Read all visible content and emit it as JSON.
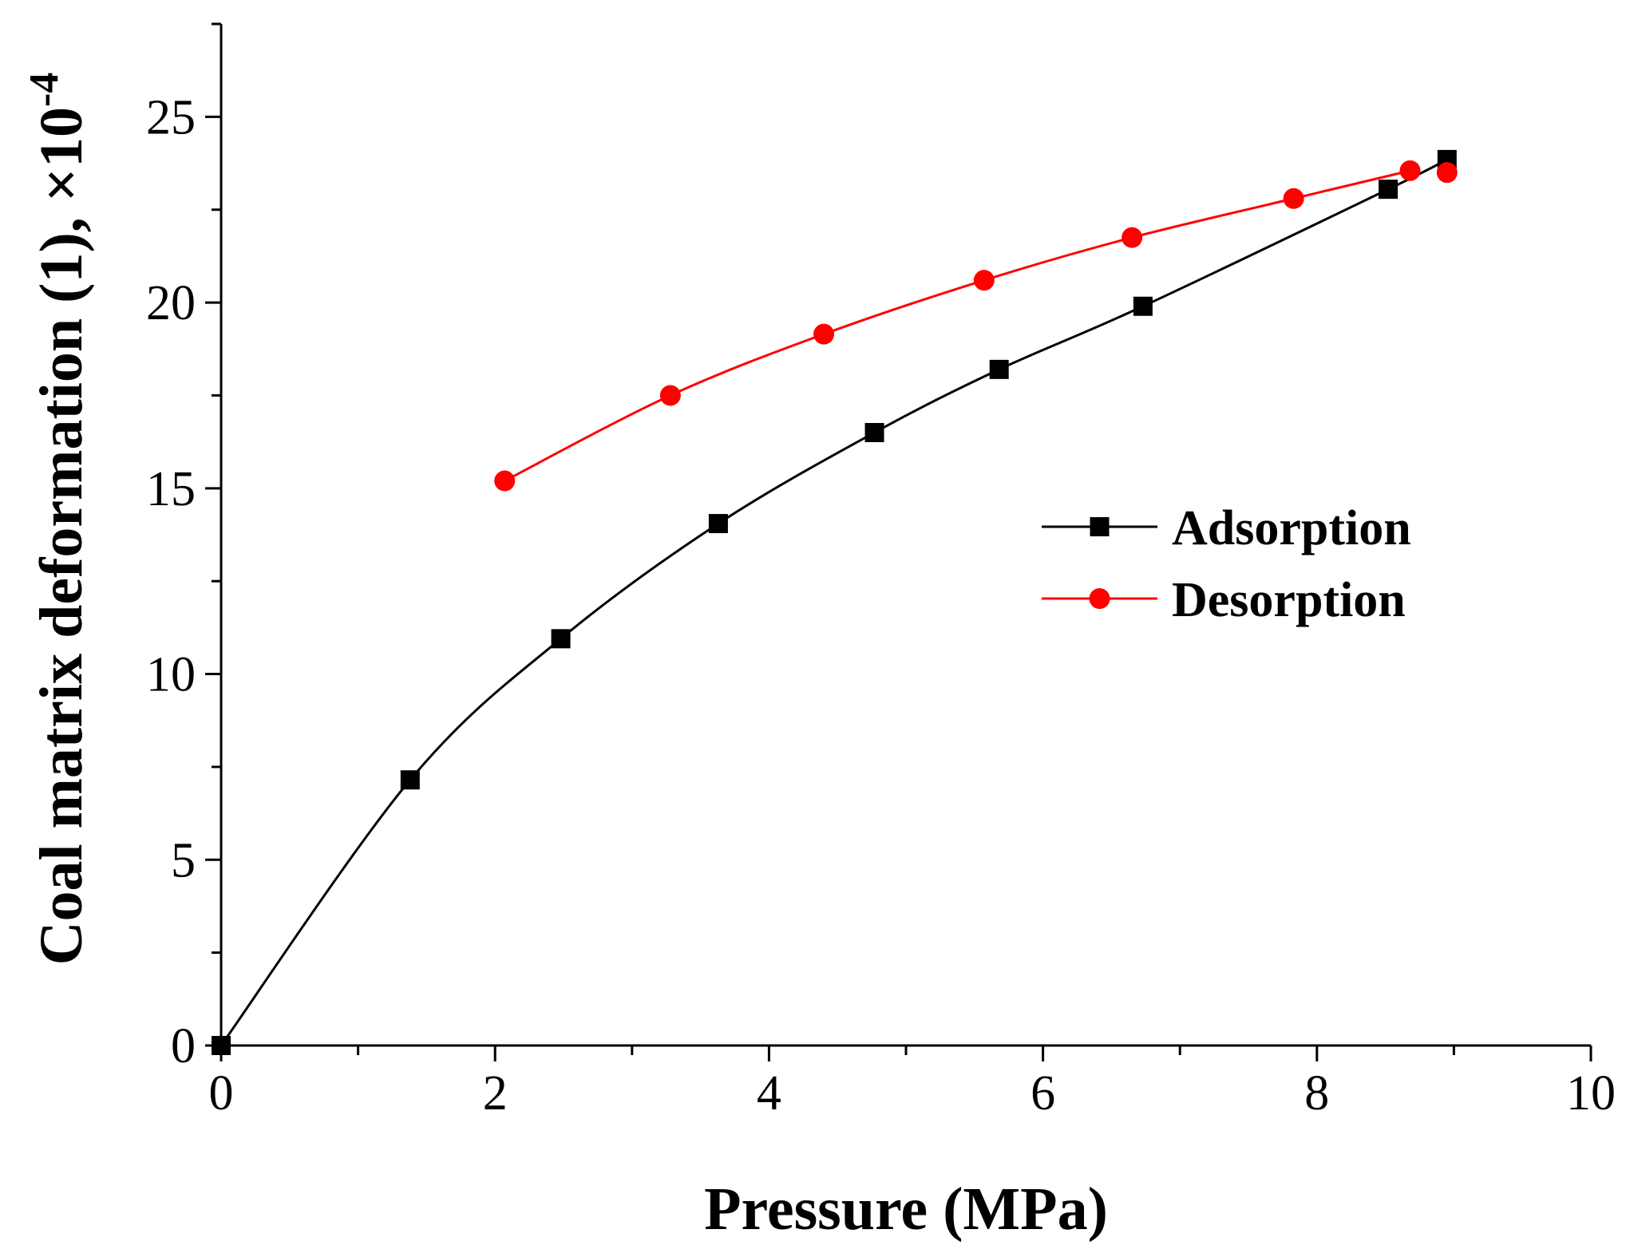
{
  "chart_data": {
    "type": "line",
    "title": "",
    "xlabel": "Pressure (MPa)",
    "ylabel": "Coal matrix deformation (1), ×10",
    "ylabel_exponent": "-4",
    "xlim": [
      0,
      10
    ],
    "ylim": [
      0,
      27.5
    ],
    "xticks": [
      0,
      2,
      4,
      6,
      8,
      10
    ],
    "yticks": [
      0,
      5,
      10,
      15,
      20,
      25
    ],
    "x_minor_step": 1,
    "y_minor_step": 2.5,
    "grid": false,
    "legend_position": "right",
    "series": [
      {
        "name": "Adsorption",
        "color": "#000000",
        "marker": "square",
        "x": [
          0,
          1.38,
          2.48,
          3.63,
          4.77,
          5.68,
          6.73,
          8.52,
          8.95
        ],
        "y": [
          0,
          7.15,
          10.95,
          14.05,
          16.5,
          18.2,
          19.9,
          23.05,
          23.85
        ]
      },
      {
        "name": "Desorption",
        "color": "#ff0000",
        "marker": "circle",
        "x": [
          2.07,
          3.28,
          4.4,
          5.57,
          6.65,
          7.83,
          8.68,
          8.95
        ],
        "y": [
          15.2,
          17.5,
          19.15,
          20.6,
          21.75,
          22.8,
          23.55,
          23.5
        ]
      }
    ]
  }
}
